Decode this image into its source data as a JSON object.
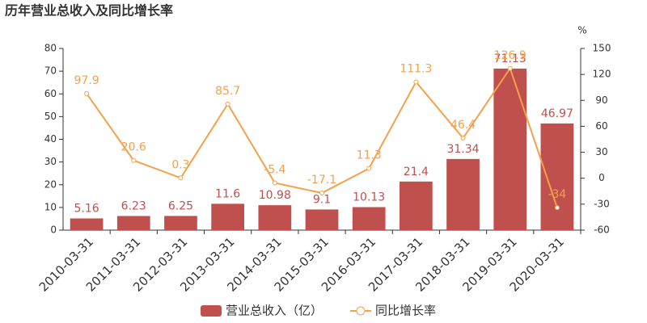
{
  "chart_data": {
    "type": "bar",
    "title": "历年营业总收入及同比增长率",
    "y2_unit": "%",
    "categories": [
      "2010-03-31",
      "2011-03-31",
      "2012-03-31",
      "2013-03-31",
      "2014-03-31",
      "2015-03-31",
      "2016-03-31",
      "2017-03-31",
      "2018-03-31",
      "2019-03-31",
      "2020-03-31"
    ],
    "series": [
      {
        "name": "营业总收入（亿）",
        "type": "bar",
        "color": "#c0504d",
        "values": [
          5.16,
          6.23,
          6.25,
          11.6,
          10.98,
          9.1,
          10.13,
          21.4,
          31.34,
          71.13,
          46.97
        ]
      },
      {
        "name": "同比增长率",
        "type": "line",
        "axis": "y2",
        "color": "#f5a04a",
        "values": [
          97.9,
          20.6,
          0.3,
          85.7,
          -5.4,
          -17.1,
          11.3,
          111.3,
          46.4,
          126.9,
          -34
        ]
      }
    ],
    "ylim": [
      0,
      80
    ],
    "yticks": [
      0,
      10,
      20,
      30,
      40,
      50,
      60,
      70,
      80
    ],
    "y2lim": [
      -60,
      150
    ],
    "y2ticks": [
      -60,
      -30,
      0,
      30,
      60,
      90,
      120,
      150
    ]
  }
}
